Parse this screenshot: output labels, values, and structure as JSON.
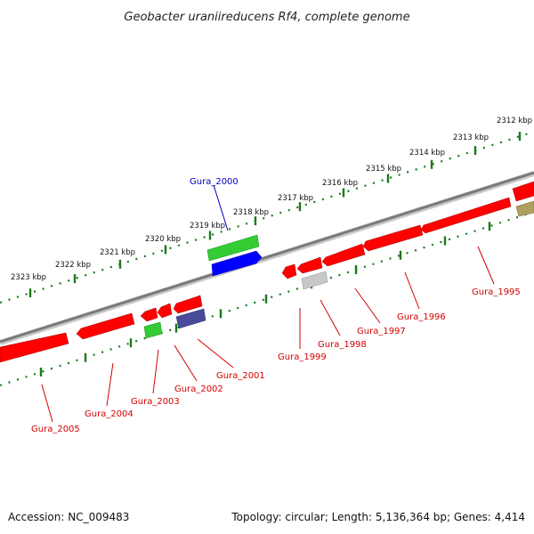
{
  "title": "Geobacter uraniireducens Rf4, complete genome",
  "footer": {
    "accession": "Accession: NC_009483",
    "summary": "Topology: circular; Length: 5,136,364 bp; Genes: 4,414"
  },
  "scale_labels": [
    "2312 kbp",
    "2313 kbp",
    "2314 kbp",
    "2315 kbp",
    "2316 kbp",
    "2317 kbp",
    "2318 kbp",
    "2319 kbp",
    "2320 kbp",
    "2321 kbp",
    "2322 kbp",
    "2323 kbp"
  ],
  "colors": {
    "backbone": "#8a8a8a",
    "tick": "#1a7a1a",
    "label_red": "#d40000",
    "label_blue": "#0000c0"
  },
  "genes": [
    {
      "label": "Gura_1995",
      "color": "#ff0000"
    },
    {
      "label": "Gura_1996",
      "color": "#ff0000"
    },
    {
      "label": "Gura_1997",
      "color": "#ff0000"
    },
    {
      "label": "Gura_1998",
      "color": "#ff0000"
    },
    {
      "label": "Gura_1999",
      "color": "#c8c8c8"
    },
    {
      "label": "Gura_2000",
      "color": "#0000ff"
    },
    {
      "label": "Gura_2001",
      "color": "#4a4a9a"
    },
    {
      "label": "Gura_2002",
      "color": "#ff0000"
    },
    {
      "label": "Gura_2003",
      "color": "#33cc33"
    },
    {
      "label": "Gura_2004",
      "color": "#ff0000"
    },
    {
      "label": "Gura_2005",
      "color": "#ff0000"
    }
  ],
  "other_features": [
    {
      "color": "#ff0000"
    },
    {
      "color": "#ff0000"
    },
    {
      "color": "#ff0000"
    },
    {
      "color": "#b0a060"
    },
    {
      "color": "#33cc33"
    }
  ]
}
